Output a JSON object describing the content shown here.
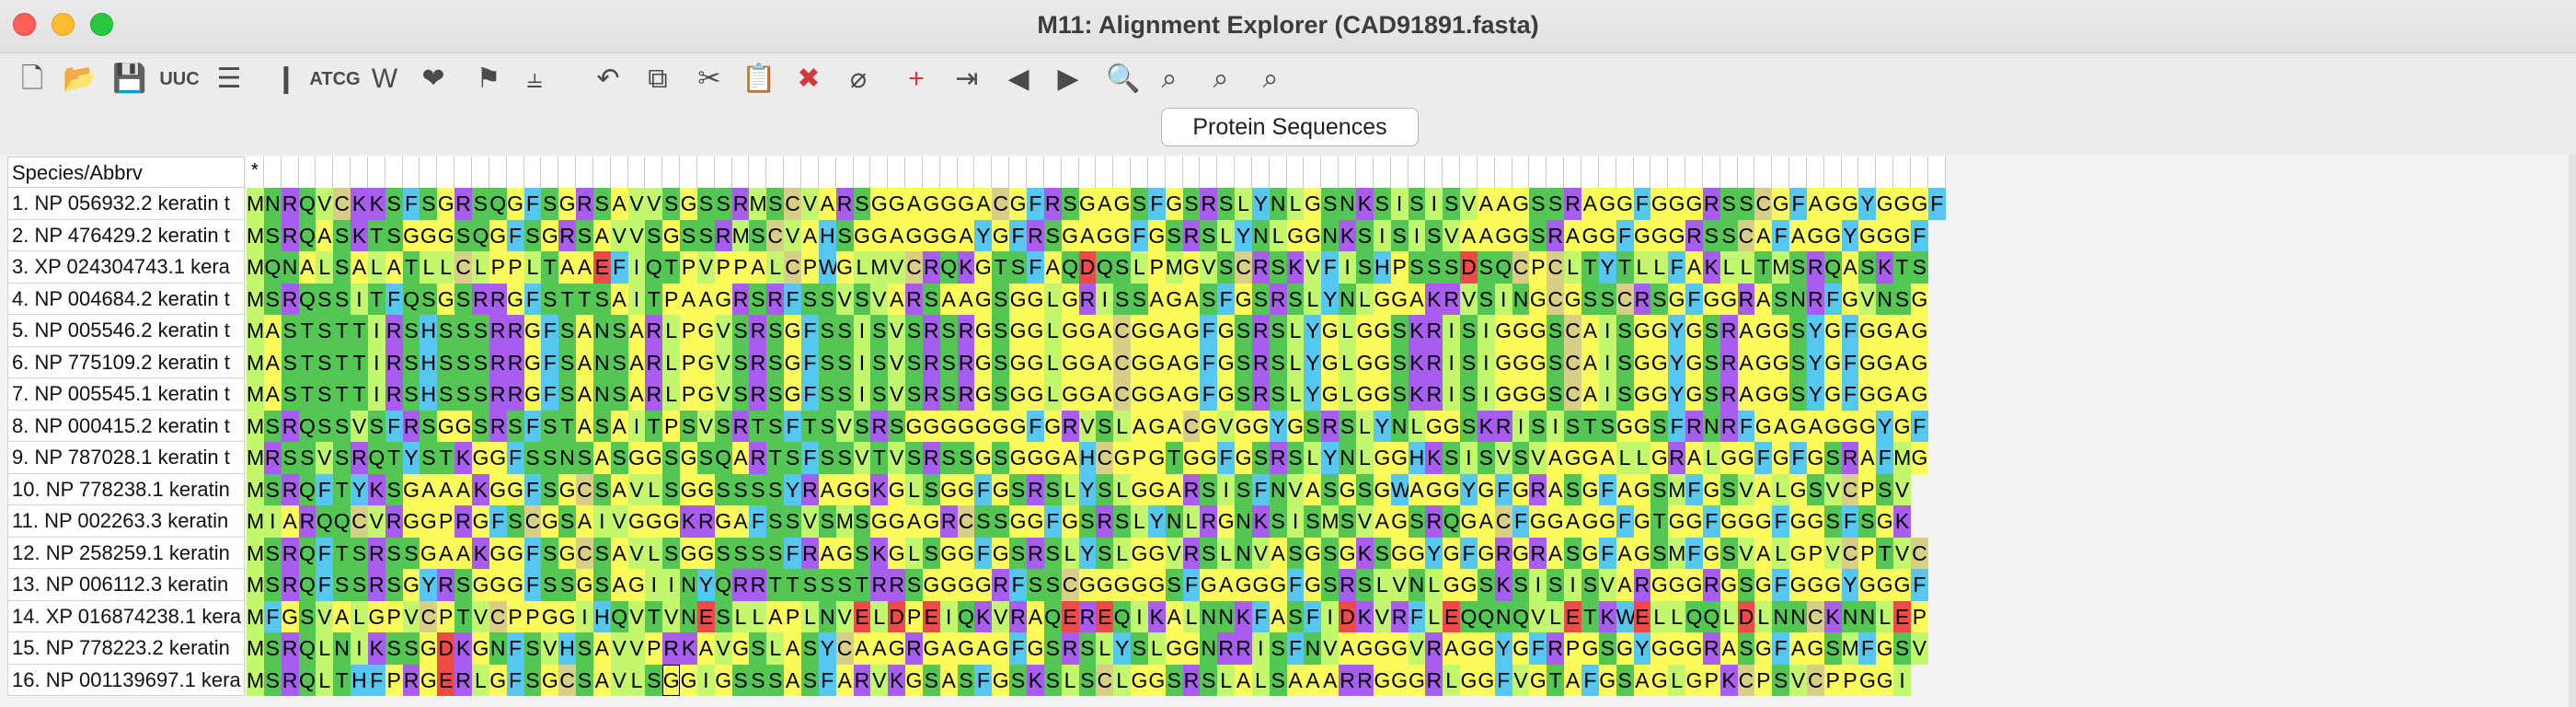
{
  "window": {
    "title": "M11: Alignment Explorer (CAD91891.fasta)"
  },
  "toolbar": {
    "icons": [
      {
        "name": "new-file-icon",
        "glyph": "🗋"
      },
      {
        "name": "open-folder-icon",
        "glyph": "📂"
      },
      {
        "name": "save-icon",
        "glyph": "💾"
      },
      {
        "name": "uuc-translate-icon",
        "glyph": "UUC"
      },
      {
        "name": "text-file-icon",
        "glyph": "☰"
      },
      {
        "name": "align-columns-icon",
        "glyph": "❙"
      },
      {
        "name": "atcg-icon",
        "glyph": "ATCG"
      },
      {
        "name": "web-icon",
        "glyph": "W"
      },
      {
        "name": "muscle-icon",
        "glyph": "❤"
      },
      {
        "name": "flag-icon",
        "glyph": "⚑"
      },
      {
        "name": "column-mark-icon",
        "glyph": "⫨"
      },
      {
        "name": "undo-icon",
        "glyph": "↶"
      },
      {
        "name": "copy-icon",
        "glyph": "⧉"
      },
      {
        "name": "cut-icon",
        "glyph": "✂"
      },
      {
        "name": "paste-icon",
        "glyph": "📋"
      },
      {
        "name": "delete-icon",
        "glyph": "✖",
        "red": true
      },
      {
        "name": "delete-gaps-icon",
        "glyph": "⌀"
      },
      {
        "name": "add-sequence-icon",
        "glyph": "+",
        "red": true
      },
      {
        "name": "import-icon",
        "glyph": "⇥"
      },
      {
        "name": "move-left-icon",
        "glyph": "◀"
      },
      {
        "name": "move-right-icon",
        "glyph": "▶"
      },
      {
        "name": "search-icon",
        "glyph": "🔍"
      },
      {
        "name": "find-previous-icon",
        "glyph": "⌕"
      },
      {
        "name": "find-next-icon",
        "glyph": "⌕"
      },
      {
        "name": "find-marker-icon",
        "glyph": "⌕"
      }
    ]
  },
  "mode_button": "Protein Sequences",
  "grid": {
    "header_label": "Species/Abbrv",
    "consensus_marker": "*",
    "cursor_column": 24,
    "species": [
      "1. NP 056932.2 keratin t",
      "2. NP 476429.2 keratin t",
      "3. XP 024304743.1 kera",
      "4. NP 004684.2 keratin t",
      "5. NP 005546.2 keratin t",
      "6. NP 775109.2 keratin t",
      "7. NP 005545.1 keratin t",
      "8. NP 000415.2 keratin t",
      "9. NP 787028.1 keratin t",
      "10. NP 778238.1 keratin",
      "11. NP 002263.3 keratin",
      "12. NP 258259.1 keratin",
      "13. NP 006112.3 keratin",
      "14. XP 016874238.1 kera",
      "15. NP 778223.2 keratin",
      "16. NP 001139697.1 kera"
    ],
    "sequences": [
      "MNRQVCKKSFSGRSQGFSGRSAVVSGSSRMSCVARSGGAGGGACGFRSGAGSFGSRSLYNLGSNKSISISVAAGSSRAGGFGGGRSSCGFAGGYGGGF",
      "MSRQASKTSGGGSQGFSGRSAVVSGSSRMSCVAHSGGAGGGAYGFRSGAGGFGSRSLYNLGGNKSISISVAAGGSRAGGFGGGRSSCAFAGGYGGGF",
      "MQNALSALATLLCLPPLTAAEFIQTPVPPALCPWGLMVCRQKGTSFAQDQSLPMGVSCRSKVFISHPSSSDSQCPCLTYTLLFAKLLTMSRQASKTS",
      "MSRQSSITFQSGSRRGFSTTSAITPAAGRSRFSSVSVARSAAGSGGLGRISSAGASFGSRSLYNLGGAKRVSINGCGSSCRSGFGGRASNRFGVNSG",
      "MASTSTTIRSHSSSRRGFSANSARLPGVSRSGFSSISVSRSRGSGGLGGACGGAGFGSRSLYGLGGSKRISIGGGSCAISGGYGSRAGGSYGFGGAG",
      "MASTSTTIRSHSSSRRGFSANSARLPGVSRSGFSSISVSRSRGSGGLGGACGGAGFGSRSLYGLGGSKRISIGGGSCAISGGYGSRAGGSYGFGGAG",
      "MASTSTTIRSHSSSRRGFSANSARLPGVSRSGFSSISVSRSRGSGGLGGACGGAGFGSRSLYGLGGSKRISIGGGSCAISGGYGSRAGGSYGFGGAG",
      "MSRQSSVSFRSGGSRSFSTASAITPSVSRTSFTSVSRSGGGGGGGFGRVSLAGACGVGGYGSRSLYNLGGSKRISISTSGGSFRNRFGAGAGGGYGF",
      "MRSSVSRQTYSTKGGFSSNSASGGSGSQARTSFSSVTVSRSSGSGGGAHCGPGTGGFGSRSLYNLGGHKSISVSVAGGALLGRALGGFGFGSRAFMG",
      "MSRQFTYKSGAAAKGGFSGCSAVLSGGSSSSYRAGGKGLSGGFGSRSLYSLGGARSISFNVASGSGWAGGYGFGRASGFAGSMFGSVALGSVCPSV",
      "MIARQQCVRGGPRGFSCGSAIVGGGKRGAFSSVSMSGGAGRCSSGGFGSRSLYNLRGNKSISMSVAGSRQGACFGGAGGFGTGGFGGGFGGSFSGK",
      "MSRQFTSRSSGAAKGGFSGCSAVLSGGSSSSFRAGSKGLSGGFGSRSLYSLGGVRSLNVASGSGKSGGYGFGRGRASGFAGSMFGSVALGPVCPTVC",
      "MSRQFSSRSGYRSGGGFSSGSAGIINYQRRTTSSSTRRSGGGGRFSSCGGGGGSFGAGGGFGSRSLVNLGGSKSISISVARGGGRGSGFGGGYGGGF",
      "MFGSVALGPVCPTVCPPGGIHQVTVNESLLAPLNVELDPEIQKVRAQEREQIKALNNKFASFIDKVRFLEQQNQVLETKWELLQQLDLNNCKNNLEP",
      "MSRQLNIKSSGDKGNFSVHSAVVPRKAVGSLASYCAAGRGAGAGFGSRSLYSLGGNRRISFNVAGGGVRAGGYGFRPGSGYGGGRASGFAGSMFGSV",
      "MSRQLTHFPRGERLGFSGCSAVLSGGIGSSSASFARVKGSASFGSKSLSCLGGSRSLALSAAARRGGGRLGGFVGTAFGSAGLGPKCPSVCPPGGI"
    ],
    "aa_colors": {
      "G": "#fbfb5c",
      "A": "#fbfb5c",
      "P": "#fbfb5c",
      "S": "#53c653",
      "T": "#53c653",
      "N": "#53c653",
      "Q": "#53c653",
      "R": "#a85cf0",
      "K": "#a85cf0",
      "H": "#56c7f0",
      "D": "#ee4a4a",
      "E": "#ee4a4a",
      "L": "#c2f76e",
      "I": "#c2f76e",
      "V": "#c2f76e",
      "M": "#c2f76e",
      "F": "#56c7f0",
      "Y": "#56c7f0",
      "W": "#56c7f0",
      "C": "#d7cf86"
    }
  }
}
